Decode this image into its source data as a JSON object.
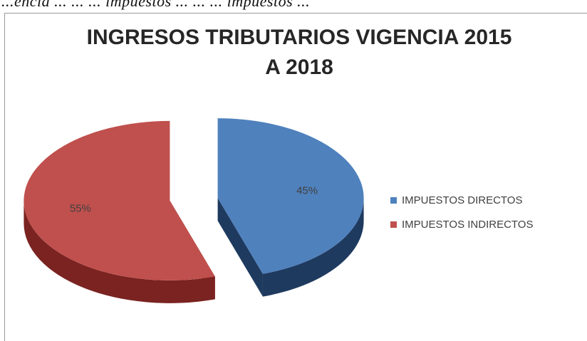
{
  "page": {
    "top_text": "...encia ... ... ... impuestos ... ... ... impuestos ..."
  },
  "chart_data": {
    "type": "pie",
    "title": "INGRESOS TRIBUTARIOS VIGENCIA 2015\nA 2018",
    "slices": [
      {
        "label": "IMPUESTOS DIRECTOS",
        "value": 45,
        "data_label": "45%",
        "color": "#4f81bd",
        "side_color": "#1f3a5f"
      },
      {
        "label": "IMPUESTOS INDIRECTOS",
        "value": 55,
        "data_label": "55%",
        "color": "#c0504d",
        "side_color": "#7a2321"
      }
    ],
    "legend_position": "right",
    "exploded": true,
    "three_d": true
  }
}
